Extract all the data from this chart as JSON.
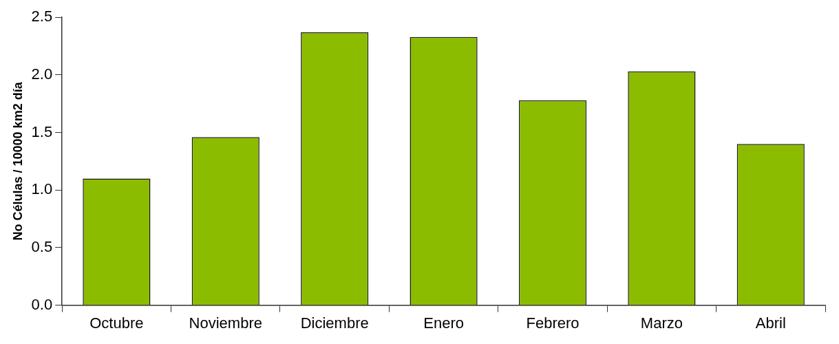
{
  "chart_data": {
    "type": "bar",
    "ylabel": "No Células / 10000 km2 día",
    "categories": [
      "Octubre",
      "Noviembre",
      "Diciembre",
      "Enero",
      "Febrero",
      "Marzo",
      "Abril"
    ],
    "values": [
      1.1,
      1.46,
      2.37,
      2.33,
      1.78,
      2.03,
      1.4
    ],
    "color": "#8cbc00",
    "ylim": [
      0,
      2.5
    ],
    "yticks": [
      {
        "value": 0,
        "label": "0.0"
      },
      {
        "value": 0.5,
        "label": "0.5"
      },
      {
        "value": 1,
        "label": "1.0"
      },
      {
        "value": 1.5,
        "label": "1.5"
      },
      {
        "value": 2,
        "label": "2.0"
      },
      {
        "value": 2.5,
        "label": "2.5"
      }
    ],
    "grid": false,
    "legend": false
  }
}
